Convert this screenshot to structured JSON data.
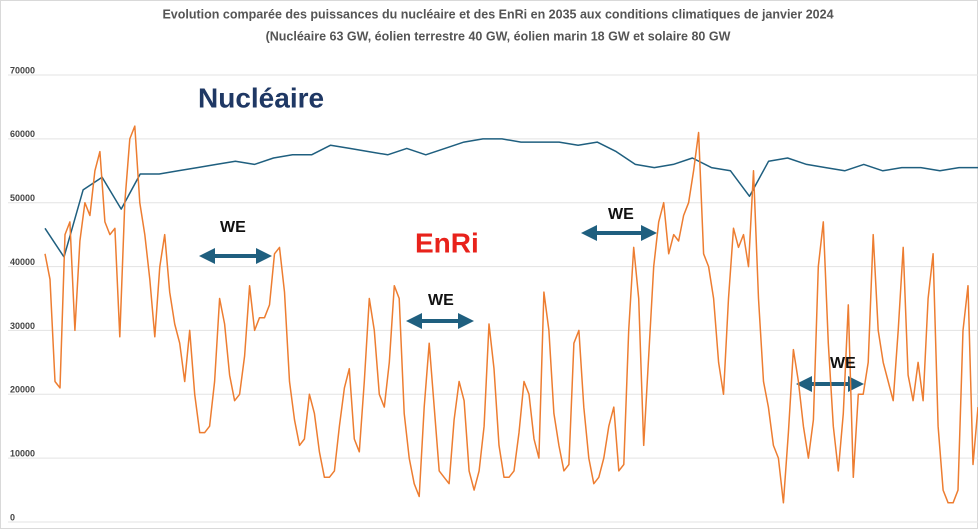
{
  "chart_data": {
    "type": "line",
    "title": "Evolution comparée des puissances du nucléaire et des EnRi en 2035 aux conditions climatiques de janvier 2024",
    "subtitle": "(Nucléaire 63 GW, éolien terrestre 40 GW, éolien marin 18 GW et solaire 80 GW",
    "ylim": [
      0,
      70000
    ],
    "yticks": [
      0,
      10000,
      20000,
      30000,
      40000,
      50000,
      60000,
      70000
    ],
    "grid": true,
    "annotations": [
      {
        "text": "Nucléaire",
        "color": "#1f3864"
      },
      {
        "text": "EnRi",
        "color": "#e8221b"
      },
      {
        "text": "WE"
      },
      {
        "text": "WE"
      },
      {
        "text": "WE"
      },
      {
        "text": "WE"
      }
    ],
    "series": [
      {
        "name": "Nucléaire",
        "color": "#1f5f7f",
        "values": [
          46000,
          41500,
          52000,
          54000,
          49000,
          54500,
          54500,
          55000,
          55500,
          56000,
          56500,
          56000,
          57000,
          57500,
          57500,
          59000,
          58500,
          58000,
          57500,
          58500,
          57500,
          58500,
          59500,
          60000,
          60000,
          59500,
          59500,
          59500,
          59000,
          59500,
          58000,
          56000,
          55500,
          56000,
          57000,
          55500,
          55000,
          51000,
          56500,
          57000,
          56000,
          55500,
          55000,
          56000,
          55000,
          55500,
          55500,
          55000,
          55500,
          55500
        ]
      },
      {
        "name": "EnRi",
        "color": "#ed7d31",
        "values": [
          42000,
          38000,
          22000,
          21000,
          45000,
          47000,
          30000,
          44000,
          50000,
          48000,
          55000,
          58000,
          47000,
          45000,
          46000,
          29000,
          50000,
          60000,
          62000,
          50000,
          45000,
          38000,
          29000,
          40000,
          45000,
          36000,
          31000,
          28000,
          22000,
          30000,
          20000,
          14000,
          14000,
          15000,
          22000,
          35000,
          31000,
          23000,
          19000,
          20000,
          26000,
          37000,
          30000,
          32000,
          32000,
          34000,
          42000,
          43000,
          36000,
          22000,
          16000,
          12000,
          13000,
          20000,
          17000,
          11000,
          7000,
          7000,
          8000,
          15000,
          21000,
          24000,
          13000,
          11000,
          22000,
          35000,
          30000,
          20000,
          18000,
          25000,
          37000,
          35000,
          17000,
          10000,
          6000,
          4000,
          18000,
          28000,
          18000,
          8000,
          7000,
          6000,
          16000,
          22000,
          19000,
          8000,
          5000,
          8000,
          15000,
          31000,
          24000,
          12000,
          7000,
          7000,
          8000,
          14000,
          22000,
          20000,
          13000,
          10000,
          36000,
          30000,
          17000,
          12000,
          8000,
          9000,
          28000,
          30000,
          18000,
          10000,
          6000,
          7000,
          10000,
          15000,
          18000,
          8000,
          9000,
          30000,
          43000,
          35000,
          12000,
          26000,
          40000,
          47000,
          50000,
          42000,
          45000,
          44000,
          48000,
          50000,
          55000,
          61000,
          42000,
          40000,
          35000,
          25000,
          20000,
          35000,
          46000,
          43000,
          45000,
          40000,
          55000,
          35000,
          22000,
          18000,
          12000,
          10000,
          3000,
          14000,
          27000,
          22000,
          15000,
          10000,
          16000,
          40000,
          47000,
          28000,
          15000,
          8000,
          17000,
          34000,
          7000,
          20000,
          20000,
          25000,
          45000,
          30000,
          25000,
          22000,
          19000,
          30000,
          43000,
          23000,
          19000,
          25000,
          19000,
          35000,
          42000,
          15000,
          5000,
          3000,
          3000,
          5000,
          30000,
          37000,
          9000,
          18000
        ]
      }
    ]
  }
}
